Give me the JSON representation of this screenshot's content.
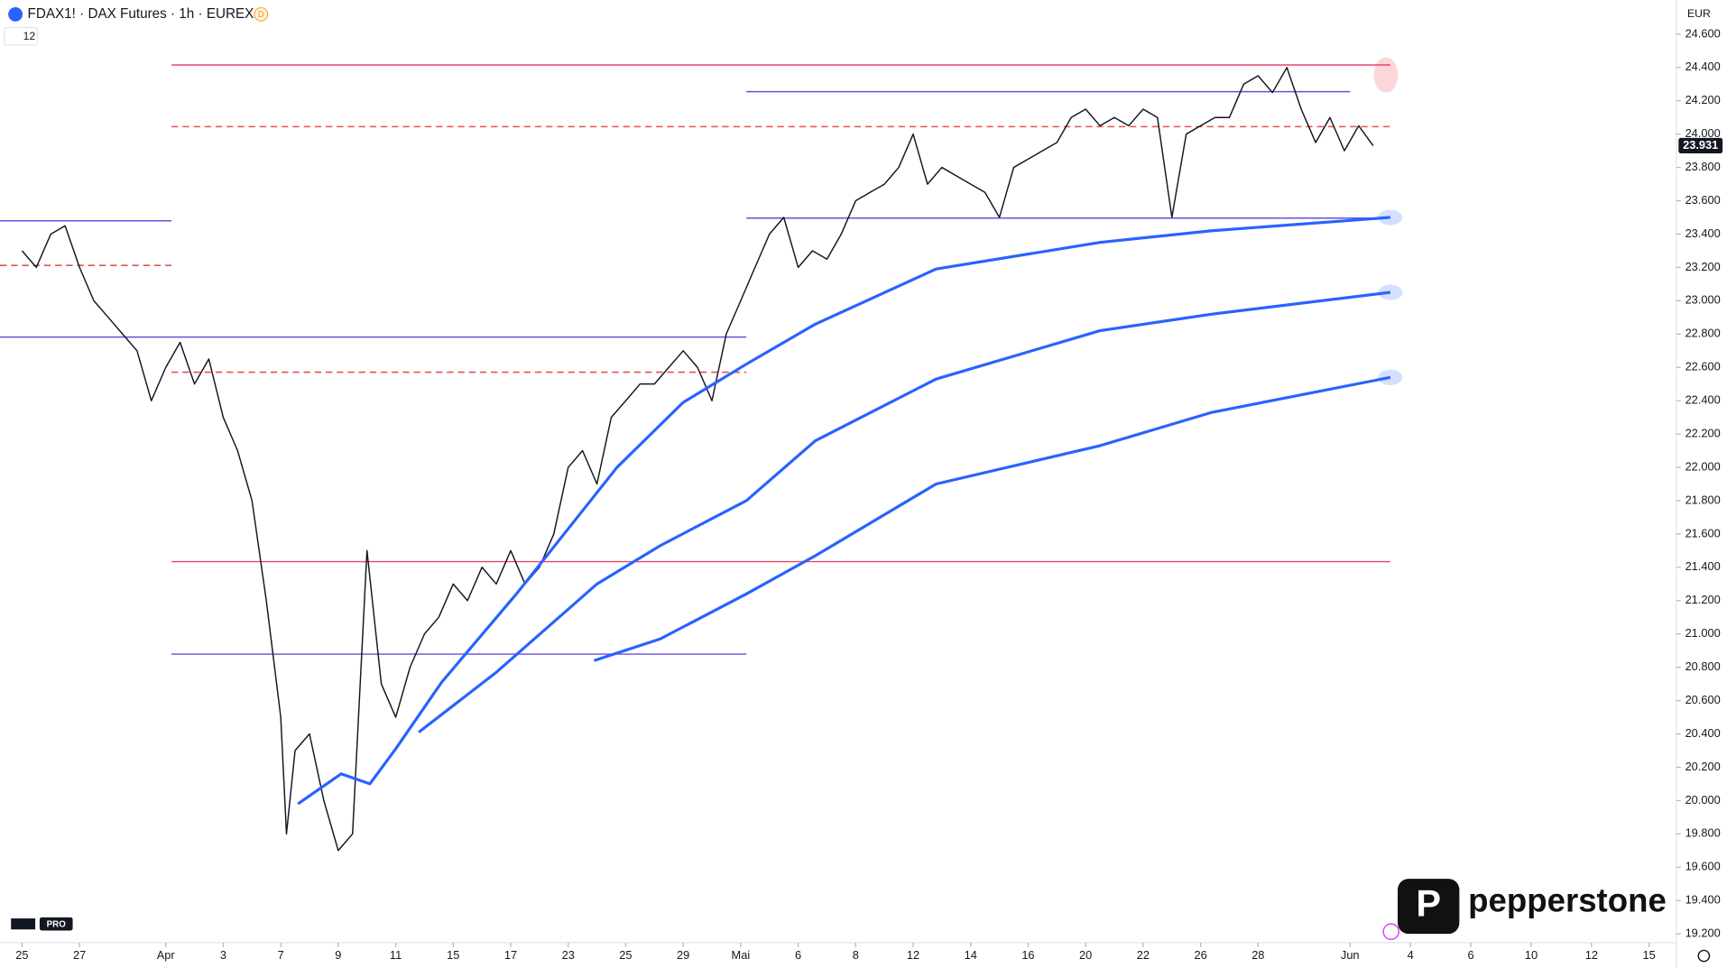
{
  "chart_data": {
    "type": "line",
    "title": "FDAX1! · DAX Futures · 1h · EUREX",
    "interval_badge": "D",
    "indicator_count": "12",
    "currency": "EUR",
    "brand": "pepperstone",
    "platform_badge": "PRO",
    "last_price": {
      "value": 23931,
      "label": "23.931"
    },
    "xlim": [
      -0.766,
      57.55
    ],
    "ylim": [
      19147,
      24805
    ],
    "xticks": [
      {
        "value": 0,
        "label": "25"
      },
      {
        "value": 2,
        "label": "27"
      },
      {
        "value": 5,
        "label": "Apr"
      },
      {
        "value": 7,
        "label": "3"
      },
      {
        "value": 9,
        "label": "7"
      },
      {
        "value": 11,
        "label": "9"
      },
      {
        "value": 13,
        "label": "11"
      },
      {
        "value": 15,
        "label": "15"
      },
      {
        "value": 17,
        "label": "17"
      },
      {
        "value": 19,
        "label": "23"
      },
      {
        "value": 21,
        "label": "25"
      },
      {
        "value": 23,
        "label": "29"
      },
      {
        "value": 25,
        "label": "Mai"
      },
      {
        "value": 27,
        "label": "6"
      },
      {
        "value": 29,
        "label": "8"
      },
      {
        "value": 31,
        "label": "12"
      },
      {
        "value": 33,
        "label": "14"
      },
      {
        "value": 35,
        "label": "16"
      },
      {
        "value": 37,
        "label": "20"
      },
      {
        "value": 39,
        "label": "22"
      },
      {
        "value": 41,
        "label": "26"
      },
      {
        "value": 43,
        "label": "28"
      },
      {
        "value": 46.2,
        "label": "Jun"
      },
      {
        "value": 48.3,
        "label": "4"
      },
      {
        "value": 50.4,
        "label": "6"
      },
      {
        "value": 52.5,
        "label": "10"
      },
      {
        "value": 54.6,
        "label": "12"
      },
      {
        "value": 56.6,
        "label": "15"
      }
    ],
    "yticks": [
      {
        "value": 24600,
        "label": "24.600"
      },
      {
        "value": 24400,
        "label": "24.400"
      },
      {
        "value": 24200,
        "label": "24.200"
      },
      {
        "value": 24000,
        "label": "24.000"
      },
      {
        "value": 23800,
        "label": "23.800"
      },
      {
        "value": 23600,
        "label": "23.600"
      },
      {
        "value": 23400,
        "label": "23.400"
      },
      {
        "value": 23200,
        "label": "23.200"
      },
      {
        "value": 23000,
        "label": "23.000"
      },
      {
        "value": 22800,
        "label": "22.800"
      },
      {
        "value": 22600,
        "label": "22.600"
      },
      {
        "value": 22400,
        "label": "22.400"
      },
      {
        "value": 22200,
        "label": "22.200"
      },
      {
        "value": 22000,
        "label": "22.000"
      },
      {
        "value": 21800,
        "label": "21.800"
      },
      {
        "value": 21600,
        "label": "21.600"
      },
      {
        "value": 21400,
        "label": "21.400"
      },
      {
        "value": 21200,
        "label": "21.200"
      },
      {
        "value": 21000,
        "label": "21.000"
      },
      {
        "value": 20800,
        "label": "20.800"
      },
      {
        "value": 20600,
        "label": "20.600"
      },
      {
        "value": 20400,
        "label": "20.400"
      },
      {
        "value": 20200,
        "label": "20.200"
      },
      {
        "value": 20000,
        "label": "20.000"
      },
      {
        "value": 19800,
        "label": "19.800"
      },
      {
        "value": 19600,
        "label": "19.600"
      },
      {
        "value": 19400,
        "label": "19.400"
      },
      {
        "value": 19200,
        "label": "19.200"
      }
    ],
    "series": [
      {
        "color": "#131722",
        "width": 1.2,
        "x": [
          0,
          0.5,
          1,
          1.5,
          2,
          2.5,
          3,
          3.5,
          4,
          4.5,
          5,
          5.5,
          6,
          6.5,
          7,
          7.5,
          8,
          8.5,
          9,
          9.2,
          9.5,
          10,
          10.5,
          11,
          11.5,
          12,
          12.5,
          13,
          13.5,
          14,
          14.5,
          15,
          15.5,
          16,
          16.5,
          17,
          17.5,
          18,
          18.5,
          19,
          19.5,
          20,
          20.5,
          21,
          21.5,
          22,
          22.5,
          23,
          23.5,
          24,
          24.5,
          25,
          25.5,
          26,
          26.5,
          27,
          27.5,
          28,
          28.5,
          29,
          29.5,
          30,
          30.5,
          31,
          31.5,
          32,
          32.5,
          33,
          33.5,
          34,
          34.5,
          35,
          35.5,
          36,
          36.5,
          37,
          37.5,
          38,
          38.5,
          39,
          39.5,
          40,
          40.5,
          41,
          41.5,
          42,
          42.5,
          43,
          43.5,
          44,
          44.5,
          45,
          45.5,
          46,
          46.5,
          47
        ],
        "values": [
          23300,
          23200,
          23400,
          23450,
          23200,
          23000,
          22900,
          22800,
          22700,
          22400,
          22600,
          22750,
          22500,
          22650,
          22300,
          22100,
          21800,
          21200,
          20500,
          19800,
          20300,
          20400,
          20000,
          19700,
          19800,
          21500,
          20700,
          20500,
          20800,
          21000,
          21100,
          21300,
          21200,
          21400,
          21300,
          21500,
          21300,
          21400,
          21600,
          22000,
          22100,
          21900,
          22300,
          22400,
          22500,
          22500,
          22600,
          22700,
          22600,
          22400,
          22800,
          23000,
          23200,
          23400,
          23500,
          23200,
          23300,
          23250,
          23400,
          23600,
          23650,
          23700,
          23800,
          24000,
          23700,
          23800,
          23750,
          23700,
          23650,
          23500,
          23800,
          23850,
          23900,
          23950,
          24100,
          24150,
          24050,
          24100,
          24050,
          24150,
          24100,
          23500,
          24000,
          24050,
          24100,
          24100,
          24300,
          24350,
          24250,
          24400,
          24150,
          23950,
          24100,
          23900,
          24050,
          23931
        ]
      },
      {
        "color": "#2962ff",
        "width": 2.6,
        "x": [
          9.6,
          11.1,
          12.1,
          13,
          14.6,
          17.2,
          20.7,
          23,
          25.2,
          27.6,
          31.8,
          37.5,
          41.4,
          47.6
        ],
        "values": [
          19980,
          20160,
          20100,
          20310,
          20710,
          21240,
          22000,
          22390,
          22620,
          22860,
          23190,
          23350,
          23420,
          23500
        ]
      },
      {
        "color": "#2962ff",
        "width": 2.6,
        "x": [
          13.8,
          16.5,
          20,
          22.2,
          25.2,
          27.6,
          31.8,
          37.5,
          41.4,
          47.6
        ],
        "values": [
          20410,
          20770,
          21300,
          21530,
          21800,
          22160,
          22530,
          22820,
          22920,
          23050
        ]
      },
      {
        "color": "#2962ff",
        "width": 2.6,
        "x": [
          19.9,
          22.2,
          25.2,
          27.6,
          31.8,
          37.5,
          41.4,
          47.6
        ],
        "values": [
          20840,
          20970,
          21240,
          21470,
          21900,
          22130,
          22330,
          22540
        ]
      }
    ],
    "levels": [
      {
        "value": 24415,
        "x": [
          5.2,
          47.6
        ],
        "color": "#e8476c",
        "dashed": false
      },
      {
        "value": 24255,
        "x": [
          25.2,
          46.2
        ],
        "color": "#6a4fd6",
        "dashed": false
      },
      {
        "value": 24045,
        "x": [
          5.2,
          47.6
        ],
        "color": "#e85050",
        "dashed": true
      },
      {
        "value": 23496,
        "x": [
          25.2,
          47.6
        ],
        "color": "#6a4fd6",
        "dashed": false
      },
      {
        "value": 23480,
        "x": [
          -0.766,
          5.2
        ],
        "color": "#6a4fd6",
        "dashed": false
      },
      {
        "value": 23212,
        "x": [
          -0.766,
          5.2
        ],
        "color": "#e85050",
        "dashed": true
      },
      {
        "value": 22782,
        "x": [
          -0.766,
          25.2
        ],
        "color": "#6a4fd6",
        "dashed": false
      },
      {
        "value": 22571,
        "x": [
          5.2,
          25.2
        ],
        "color": "#e85050",
        "dashed": true
      },
      {
        "value": 21434,
        "x": [
          5.2,
          47.6
        ],
        "color": "#e8476c",
        "dashed": false
      },
      {
        "value": 20879,
        "x": [
          5.2,
          25.2
        ],
        "color": "#6a4fd6",
        "dashed": false
      }
    ]
  }
}
